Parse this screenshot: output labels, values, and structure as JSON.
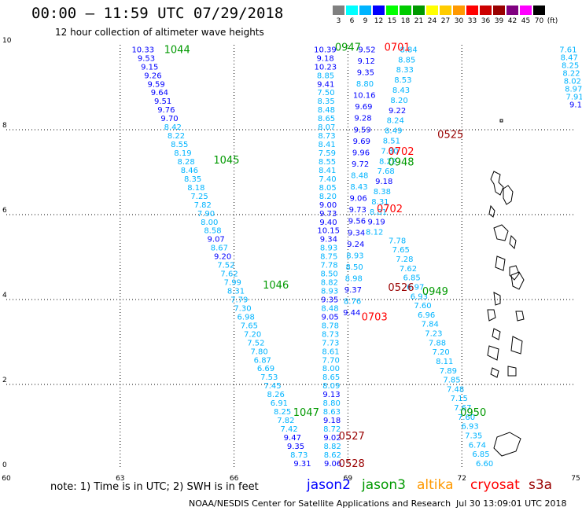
{
  "header": {
    "title": "00:00 – 11:59 UTC 07/29/2018",
    "subtitle": "12 hour collection of altimeter wave heights"
  },
  "color_scale": {
    "colors": [
      "#808080",
      "#00ffff",
      "#00b4ff",
      "#0000ff",
      "#00ff00",
      "#00cc00",
      "#009900",
      "#ffff00",
      "#ffcc00",
      "#ff9900",
      "#ff0000",
      "#cc0000",
      "#990000",
      "#800080",
      "#ff00ff",
      "#000000"
    ],
    "labels": [
      "3",
      "6",
      "9",
      "12",
      "15",
      "18",
      "21",
      "24",
      "27",
      "30",
      "33",
      "36",
      "39",
      "42",
      "45",
      "70",
      "(ft)"
    ]
  },
  "axes": {
    "x_ticks": [
      "60",
      "63",
      "66",
      "69",
      "72",
      "75"
    ],
    "y_ticks": [
      "0",
      "2",
      "4",
      "6",
      "8",
      "10"
    ],
    "xlim": [
      60,
      75
    ],
    "ylim": [
      0,
      10
    ]
  },
  "footer": {
    "note": "note:  1) Time is in UTC; 2) SWH is in feet",
    "credit": "NOAA/NESDIS Center for Satellite Applications and Research",
    "timestamp": "Jul 30 13:09:01 UTC 2018"
  },
  "legend": [
    {
      "label": "jason2",
      "color": "#0000ff"
    },
    {
      "label": "jason3",
      "color": "#009900"
    },
    {
      "label": "altika",
      "color": "#ff9900"
    },
    {
      "label": "cryosat",
      "color": "#ff0000"
    },
    {
      "label": "s3a",
      "color": "#990000"
    }
  ],
  "chart_data": {
    "type": "scatter",
    "xlim": [
      60,
      75
    ],
    "ylim": [
      0,
      10
    ],
    "grid": true,
    "pass_labels": [
      {
        "text": "1044",
        "lon": 64.5,
        "lat": 9.9,
        "color": "#009900"
      },
      {
        "text": "0947",
        "lon": 69.0,
        "lat": 9.95,
        "color": "#009900"
      },
      {
        "text": "0701",
        "lon": 70.3,
        "lat": 9.95,
        "color": "#ff0000"
      },
      {
        "text": "1045",
        "lon": 65.8,
        "lat": 7.3,
        "color": "#009900"
      },
      {
        "text": "0525",
        "lon": 71.7,
        "lat": 7.9,
        "color": "#990000"
      },
      {
        "text": "0702",
        "lon": 70.4,
        "lat": 7.5,
        "color": "#ff0000"
      },
      {
        "text": "0948",
        "lon": 70.4,
        "lat": 7.25,
        "color": "#009900"
      },
      {
        "text": "0702",
        "lon": 70.1,
        "lat": 6.15,
        "color": "#ff0000"
      },
      {
        "text": "1046",
        "lon": 67.1,
        "lat": 4.35,
        "color": "#009900"
      },
      {
        "text": "0526",
        "lon": 70.4,
        "lat": 4.3,
        "color": "#990000"
      },
      {
        "text": "0949",
        "lon": 71.3,
        "lat": 4.2,
        "color": "#009900"
      },
      {
        "text": "0703",
        "lon": 69.7,
        "lat": 3.6,
        "color": "#ff0000"
      },
      {
        "text": "1047",
        "lon": 67.9,
        "lat": 1.35,
        "color": "#009900"
      },
      {
        "text": "0950",
        "lon": 72.3,
        "lat": 1.35,
        "color": "#009900"
      },
      {
        "text": "0527",
        "lon": 69.1,
        "lat": 0.8,
        "color": "#990000"
      },
      {
        "text": "0528",
        "lon": 69.1,
        "lat": 0.15,
        "color": "#990000"
      }
    ],
    "tracks": [
      {
        "name": "track-1044",
        "lon_start": 63.6,
        "lat_start": 9.9,
        "lon_end": 67.8,
        "lat_end": 0.15,
        "values": [
          "10.33",
          "9.53",
          "9.15",
          "9.26",
          "9.59",
          "9.64",
          "9.51",
          "9.76",
          "9.70",
          "8.42",
          "8.22",
          "8.55",
          "8.19",
          "8.28",
          "8.46",
          "8.35",
          "8.18",
          "7.25",
          "7.82",
          "7.90",
          "8.00",
          "8.58",
          "9.07",
          "8.67",
          "9.20",
          "7.52",
          "7.62",
          "7.99",
          "8.31",
          "7.79",
          "7.30",
          "6.98",
          "7.65",
          "7.20",
          "7.52",
          "7.80",
          "6.87",
          "6.69",
          "7.53",
          "7.45",
          "8.26",
          "6.91",
          "8.25",
          "7.82",
          "7.42",
          "9.47",
          "9.35",
          "8.73",
          "9.31"
        ]
      },
      {
        "name": "track-0947-left",
        "lon_start": 68.4,
        "lat_start": 9.9,
        "lon_end": 68.6,
        "lat_end": 0.15,
        "values": [
          "10.39",
          "9.18",
          "10.23",
          "8.85",
          "9.41",
          "7.50",
          "8.35",
          "8.48",
          "8.65",
          "8.07",
          "8.73",
          "8.41",
          "7.59",
          "8.55",
          "8.41",
          "7.40",
          "8.05",
          "8.20",
          "9.00",
          "9.73",
          "9.40",
          "10.15",
          "9.34",
          "8.93",
          "8.75",
          "7.78",
          "8.50",
          "8.82",
          "8.93",
          "9.35",
          "8.48",
          "9.05",
          "8.78",
          "8.73",
          "7.73",
          "8.61",
          "7.70",
          "8.00",
          "8.65",
          "8.09",
          "9.13",
          "8.80",
          "8.63",
          "9.18",
          "8.72",
          "9.02",
          "8.82",
          "8.62",
          "9.06"
        ]
      },
      {
        "name": "track-0947-mid",
        "lon_start": 69.5,
        "lat_start": 9.9,
        "lon_end": 69.1,
        "lat_end": 3.7,
        "values": [
          "9.52",
          "9.12",
          "9.35",
          "8.80",
          "10.16",
          "9.69",
          "9.28",
          "9.59",
          "9.69",
          "9.96",
          "9.72",
          "8.48",
          "8.43",
          "9.06",
          "9.73",
          "9.56",
          "9.34",
          "9.24",
          "8.93",
          "8.50",
          "8.98",
          "9.37",
          "8.76",
          "9.44"
        ]
      },
      {
        "name": "track-0701",
        "lon_start": 70.6,
        "lat_start": 9.9,
        "lon_end": 69.7,
        "lat_end": 5.6,
        "values": [
          "8.84",
          "8.85",
          "8.33",
          "8.53",
          "8.43",
          "8.20",
          "9.22",
          "8.24",
          "8.49",
          "8.51",
          "7.80",
          "8.22",
          "7.68",
          "9.18",
          "8.38",
          "8.31",
          "8.81",
          "9.19",
          "8.12"
        ]
      },
      {
        "name": "track-0949",
        "lon_start": 70.3,
        "lat_start": 5.4,
        "lon_end": 72.6,
        "lat_end": 0.15,
        "values": [
          "7.78",
          "7.65",
          "7.28",
          "7.62",
          "6.85",
          "6.97",
          "6.93",
          "7.60",
          "6.96",
          "7.84",
          "7.23",
          "7.88",
          "7.20",
          "8.11",
          "7.89",
          "7.85",
          "7.48",
          "7.15",
          "7.67",
          "7.60",
          "6.93",
          "7.35",
          "6.74",
          "6.85",
          "6.60"
        ]
      },
      {
        "name": "track-right-edge",
        "lon_start": 74.8,
        "lat_start": 9.9,
        "lon_end": 75.0,
        "lat_end": 8.6,
        "values": [
          "7.61",
          "8.47",
          "8.25",
          "8.22",
          "8.02",
          "8.97",
          "7.91",
          "9.1"
        ]
      }
    ]
  }
}
